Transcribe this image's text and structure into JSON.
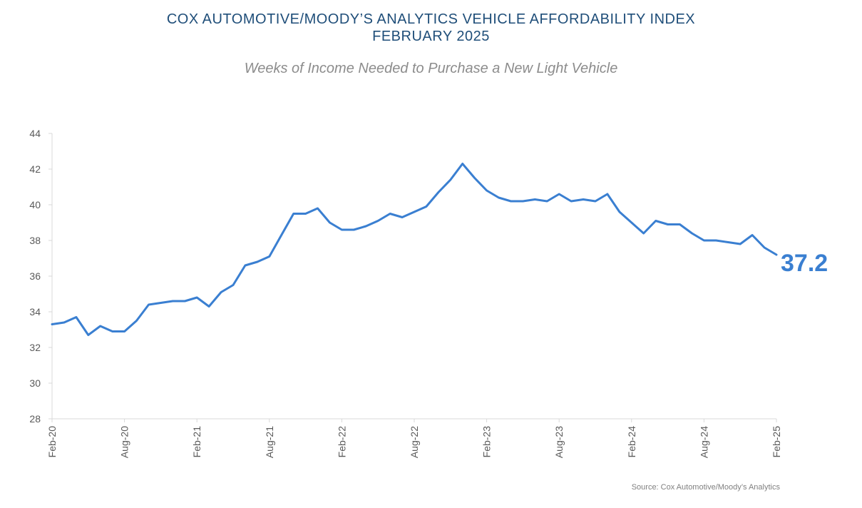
{
  "title_line1": "COX AUTOMOTIVE/MOODY’S ANALYTICS VEHICLE AFFORDABILITY INDEX",
  "title_line2": "FEBRUARY 2025",
  "subtitle": "Weeks of Income Needed to Purchase a New Light Vehicle",
  "source": "Source: Cox Automotive/Moody’s Analytics",
  "colors": {
    "line": "#3a7fd1",
    "title": "#1f4e79",
    "axis": "#d9d9d9",
    "label": "#3a7fd1"
  },
  "chart_data": {
    "type": "line",
    "title": "Weeks of Income Needed to Purchase a New Light Vehicle",
    "xlabel": "",
    "ylabel": "",
    "ylim": [
      28,
      44
    ],
    "yticks": [
      28,
      30,
      32,
      34,
      36,
      38,
      40,
      42,
      44
    ],
    "xtick_labels": [
      "Feb-20",
      "Aug-20",
      "Feb-21",
      "Aug-21",
      "Feb-22",
      "Aug-22",
      "Feb-23",
      "Aug-23",
      "Feb-24",
      "Aug-24",
      "Feb-25"
    ],
    "x_start": "Feb-20",
    "x_end": "Feb-25",
    "grid": false,
    "end_label": "37.2",
    "series": [
      {
        "name": "Weeks of Income",
        "values": [
          33.3,
          33.4,
          33.7,
          32.7,
          33.2,
          32.9,
          32.9,
          33.5,
          34.4,
          34.5,
          34.6,
          34.6,
          34.8,
          34.3,
          35.1,
          35.5,
          36.6,
          36.8,
          37.1,
          38.3,
          39.5,
          39.5,
          39.8,
          39.0,
          38.6,
          38.6,
          38.8,
          39.1,
          39.5,
          39.3,
          39.6,
          39.9,
          40.7,
          41.4,
          42.3,
          41.5,
          40.8,
          40.4,
          40.2,
          40.2,
          40.3,
          40.2,
          40.6,
          40.2,
          40.3,
          40.2,
          40.6,
          39.6,
          39.0,
          38.4,
          39.1,
          38.9,
          38.9,
          38.4,
          38.0,
          38.0,
          37.9,
          37.8,
          38.3,
          37.6,
          37.2
        ]
      }
    ]
  }
}
